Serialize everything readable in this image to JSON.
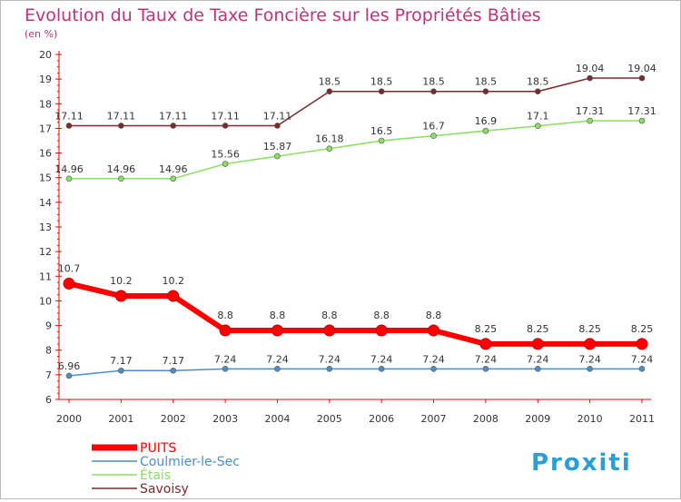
{
  "chart_data": {
    "type": "line",
    "title": "Evolution du Taux de Taxe Foncière sur les Propriétés Bâties",
    "ylabel": "(en %)",
    "xlabel": "",
    "x": [
      "2000",
      "2001",
      "2002",
      "2003",
      "2004",
      "2005",
      "2006",
      "2007",
      "2008",
      "2009",
      "2010",
      "2011"
    ],
    "ylim": [
      6,
      20
    ],
    "yticks": [
      "6",
      "7",
      "8",
      "9",
      "10",
      "11",
      "12",
      "13",
      "14",
      "15",
      "16",
      "17",
      "18",
      "19",
      "20"
    ],
    "grid": false,
    "legend_position": "bottom-left",
    "series": [
      {
        "name": "PUITS",
        "color": "#ff0000",
        "values": [
          10.7,
          10.2,
          10.2,
          8.8,
          8.8,
          8.8,
          8.8,
          8.8,
          8.25,
          8.25,
          8.25,
          8.25
        ],
        "labels": [
          "10.7",
          "10.2",
          "10.2",
          "8.8",
          "8.8",
          "8.8",
          "8.8",
          "8.8",
          "8.25",
          "8.25",
          "8.25",
          "8.25"
        ]
      },
      {
        "name": "Coulmier-le-Sec",
        "color": "#4d8ec7",
        "values": [
          6.96,
          7.17,
          7.17,
          7.24,
          7.24,
          7.24,
          7.24,
          7.24,
          7.24,
          7.24,
          7.24,
          7.24
        ],
        "labels": [
          "6.96",
          "7.17",
          "7.17",
          "7.24",
          "7.24",
          "7.24",
          "7.24",
          "7.24",
          "7.24",
          "7.24",
          "7.24",
          "7.24"
        ]
      },
      {
        "name": "Étais",
        "color": "#88e060",
        "values": [
          14.96,
          14.96,
          14.96,
          15.56,
          15.87,
          16.18,
          16.5,
          16.7,
          16.9,
          17.1,
          17.31,
          17.31
        ],
        "labels": [
          "14.96",
          "14.96",
          "14.96",
          "15.56",
          "15.87",
          "16.18",
          "16.5",
          "16.7",
          "16.9",
          "17.1",
          "17.31",
          "17.31"
        ]
      },
      {
        "name": "Savoisy",
        "color": "#7a2a2a",
        "values": [
          17.11,
          17.11,
          17.11,
          17.11,
          17.11,
          18.5,
          18.5,
          18.5,
          18.5,
          18.5,
          19.04,
          19.04
        ],
        "labels": [
          "17.11",
          "17.11",
          "17.11",
          "17.11",
          "17.11",
          "18.5",
          "18.5",
          "18.5",
          "18.5",
          "18.5",
          "19.04",
          "19.04"
        ]
      }
    ]
  },
  "colors": {
    "title": "#c0327a",
    "axis": "#ff0000",
    "label_text": "#333333"
  },
  "logo": {
    "text": "Proxiti"
  }
}
